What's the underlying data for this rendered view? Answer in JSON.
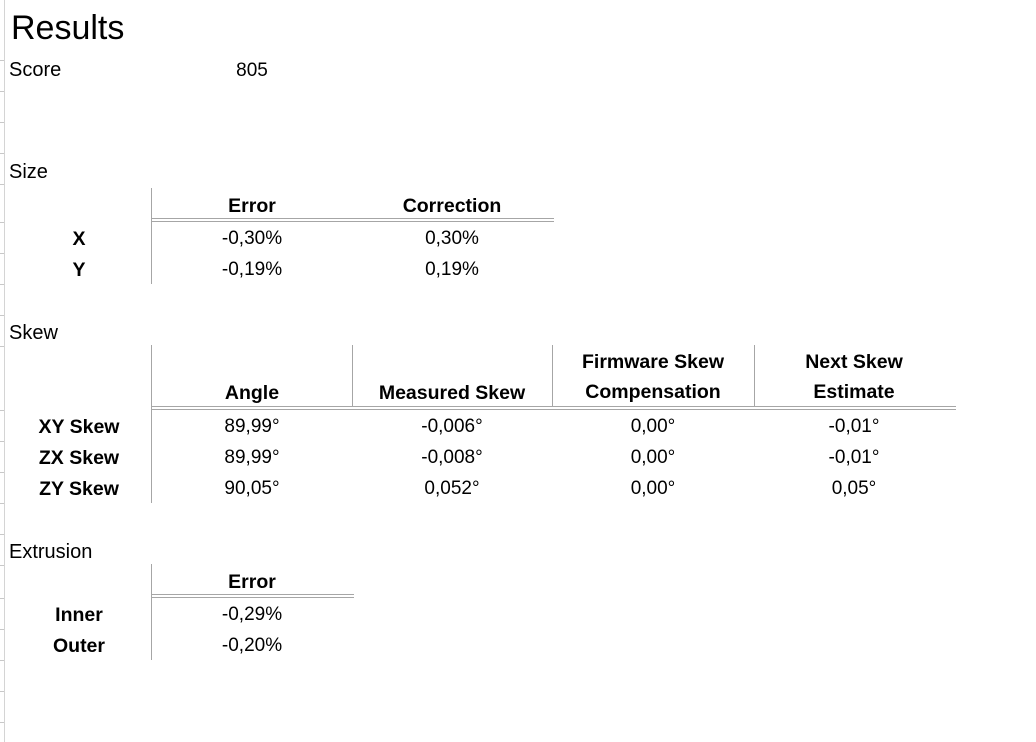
{
  "title": "Results",
  "score": {
    "label": "Score",
    "value": "805"
  },
  "size": {
    "label": "Size",
    "headers": [
      "Error",
      "Correction"
    ],
    "rows": [
      {
        "label": "X",
        "error": "-0,30%",
        "correction": "0,30%"
      },
      {
        "label": "Y",
        "error": "-0,19%",
        "correction": "0,19%"
      }
    ]
  },
  "skew": {
    "label": "Skew",
    "headers": {
      "angle": "Angle",
      "measured": "Measured Skew",
      "firmware_line1": "Firmware Skew",
      "firmware_line2": "Compensation",
      "next_line1": "Next Skew",
      "next_line2": "Estimate"
    },
    "rows": [
      {
        "label": "XY Skew",
        "angle": "89,99°",
        "measured": "-0,006°",
        "firmware": "0,00°",
        "next": "-0,01°"
      },
      {
        "label": "ZX Skew",
        "angle": "89,99°",
        "measured": "-0,008°",
        "firmware": "0,00°",
        "next": "-0,01°"
      },
      {
        "label": "ZY Skew",
        "angle": "90,05°",
        "measured": "0,052°",
        "firmware": "0,00°",
        "next": "0,05°"
      }
    ]
  },
  "extrusion": {
    "label": "Extrusion",
    "header": "Error",
    "rows": [
      {
        "label": "Inner",
        "error": "-0,29%"
      },
      {
        "label": "Outer",
        "error": "-0,20%"
      }
    ]
  }
}
